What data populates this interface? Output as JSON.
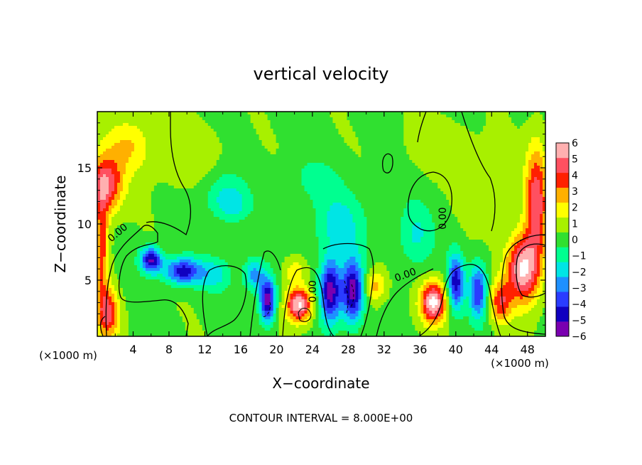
{
  "chart_data": {
    "type": "heatmap",
    "title": "vertical velocity",
    "xlabel": "X−coordinate",
    "ylabel": "Z−coordinate",
    "x_unit": "(×1000 m)",
    "x_unit_right": "(×1000 m)",
    "footer": "CONTOUR INTERVAL = 8.000E+00",
    "xlim": [
      0,
      50
    ],
    "ylim": [
      0,
      20
    ],
    "x_ticks": [
      {
        "value": 4,
        "label": "4"
      },
      {
        "value": 8,
        "label": "8"
      },
      {
        "value": 12,
        "label": "12"
      },
      {
        "value": 16,
        "label": "16"
      },
      {
        "value": 20,
        "label": "20"
      },
      {
        "value": 24,
        "label": "24"
      },
      {
        "value": 28,
        "label": "28"
      },
      {
        "value": 32,
        "label": "32"
      },
      {
        "value": 36,
        "label": "36"
      },
      {
        "value": 40,
        "label": "40"
      },
      {
        "value": 44,
        "label": "44"
      },
      {
        "value": 48,
        "label": "48"
      }
    ],
    "y_ticks": [
      {
        "value": 5,
        "label": "5"
      },
      {
        "value": 10,
        "label": "10"
      },
      {
        "value": 15,
        "label": "15"
      }
    ],
    "colorbar": {
      "range": [
        -6,
        6
      ],
      "ticks": [
        {
          "value": 6,
          "label": "6"
        },
        {
          "value": 5,
          "label": "5"
        },
        {
          "value": 4,
          "label": "4"
        },
        {
          "value": 3,
          "label": "3"
        },
        {
          "value": 2,
          "label": "2"
        },
        {
          "value": 1,
          "label": "1"
        },
        {
          "value": 0,
          "label": "0"
        },
        {
          "value": -1,
          "label": "−1"
        },
        {
          "value": -2,
          "label": "−2"
        },
        {
          "value": -3,
          "label": "−3"
        },
        {
          "value": -4,
          "label": "−4"
        },
        {
          "value": -5,
          "label": "−5"
        },
        {
          "value": -6,
          "label": "−6"
        }
      ],
      "colors": [
        "#7a00b0",
        "#1000c0",
        "#2a3cff",
        "#1e90ff",
        "#00e5e5",
        "#00ff90",
        "#30e030",
        "#a8f000",
        "#ffff00",
        "#ffb000",
        "#ff2000",
        "#ff5060",
        "#ffb0b0"
      ]
    },
    "contour_labels": [
      {
        "x": 2.5,
        "y": 9.0,
        "text": "0.00",
        "angle": -40
      },
      {
        "x": 24.4,
        "y": 4.0,
        "text": "0.00",
        "angle": -90
      },
      {
        "x": 34.5,
        "y": 5.2,
        "text": "0.00",
        "angle": -20
      },
      {
        "x": 38.9,
        "y": 10.5,
        "text": "0.00",
        "angle": -90
      }
    ],
    "features": [
      {
        "x": 1.0,
        "y": 13.5,
        "sx": 1.8,
        "sy": 2.5,
        "v": 4.5
      },
      {
        "x": 1.2,
        "y": 2.0,
        "sx": 1.2,
        "sy": 2.2,
        "v": 4.0
      },
      {
        "x": 0.5,
        "y": 8.0,
        "sx": 0.8,
        "sy": 5.0,
        "v": 3.5
      },
      {
        "x": 3.5,
        "y": 17.0,
        "sx": 2.5,
        "sy": 2.5,
        "v": 2.0
      },
      {
        "x": 6.0,
        "y": 6.8,
        "sx": 1.2,
        "sy": 1.2,
        "v": -5.5
      },
      {
        "x": 9.5,
        "y": 5.8,
        "sx": 2.0,
        "sy": 1.2,
        "v": -5.0
      },
      {
        "x": 13.0,
        "y": 5.5,
        "sx": 2.0,
        "sy": 1.5,
        "v": -2.0
      },
      {
        "x": 14.0,
        "y": 13.0,
        "sx": 2.5,
        "sy": 2.0,
        "v": -1.5
      },
      {
        "x": 15.0,
        "y": 11.5,
        "sx": 2.0,
        "sy": 1.5,
        "v": -1.8
      },
      {
        "x": 19.0,
        "y": 3.2,
        "sx": 0.9,
        "sy": 2.0,
        "v": -6.0
      },
      {
        "x": 17.5,
        "y": 5.5,
        "sx": 1.2,
        "sy": 1.5,
        "v": -3.0
      },
      {
        "x": 22.5,
        "y": 2.8,
        "sx": 1.4,
        "sy": 1.5,
        "v": 6.0
      },
      {
        "x": 22.0,
        "y": 5.8,
        "sx": 1.2,
        "sy": 1.2,
        "v": 1.8
      },
      {
        "x": 26.0,
        "y": 4.0,
        "sx": 1.2,
        "sy": 2.8,
        "v": -6.0
      },
      {
        "x": 28.5,
        "y": 4.0,
        "sx": 1.2,
        "sy": 2.8,
        "v": -6.0
      },
      {
        "x": 27.0,
        "y": 10.0,
        "sx": 3.0,
        "sy": 3.0,
        "v": -2.0
      },
      {
        "x": 24.0,
        "y": 14.0,
        "sx": 3.0,
        "sy": 2.0,
        "v": -1.0
      },
      {
        "x": 31.0,
        "y": 4.5,
        "sx": 1.2,
        "sy": 1.5,
        "v": 2.5
      },
      {
        "x": 35.5,
        "y": 9.0,
        "sx": 2.0,
        "sy": 3.0,
        "v": -1.8
      },
      {
        "x": 37.5,
        "y": 3.0,
        "sx": 1.4,
        "sy": 1.8,
        "v": 6.0
      },
      {
        "x": 40.0,
        "y": 4.8,
        "sx": 0.9,
        "sy": 2.5,
        "v": -5.0
      },
      {
        "x": 42.5,
        "y": 4.0,
        "sx": 1.0,
        "sy": 2.5,
        "v": -4.5
      },
      {
        "x": 47.5,
        "y": 6.0,
        "sx": 1.8,
        "sy": 3.0,
        "v": 6.0
      },
      {
        "x": 49.0,
        "y": 12.0,
        "sx": 1.2,
        "sy": 5.0,
        "v": 4.5
      },
      {
        "x": 45.0,
        "y": 3.0,
        "sx": 1.2,
        "sy": 1.8,
        "v": 3.5
      },
      {
        "x": 38.5,
        "y": 17.0,
        "sx": 4.0,
        "sy": 2.5,
        "v": 0.8
      },
      {
        "x": 10.0,
        "y": 16.0,
        "sx": 4.0,
        "sy": 3.0,
        "v": 0.9
      },
      {
        "x": 44.0,
        "y": 13.0,
        "sx": 2.5,
        "sy": 3.0,
        "v": 1.2
      }
    ]
  }
}
